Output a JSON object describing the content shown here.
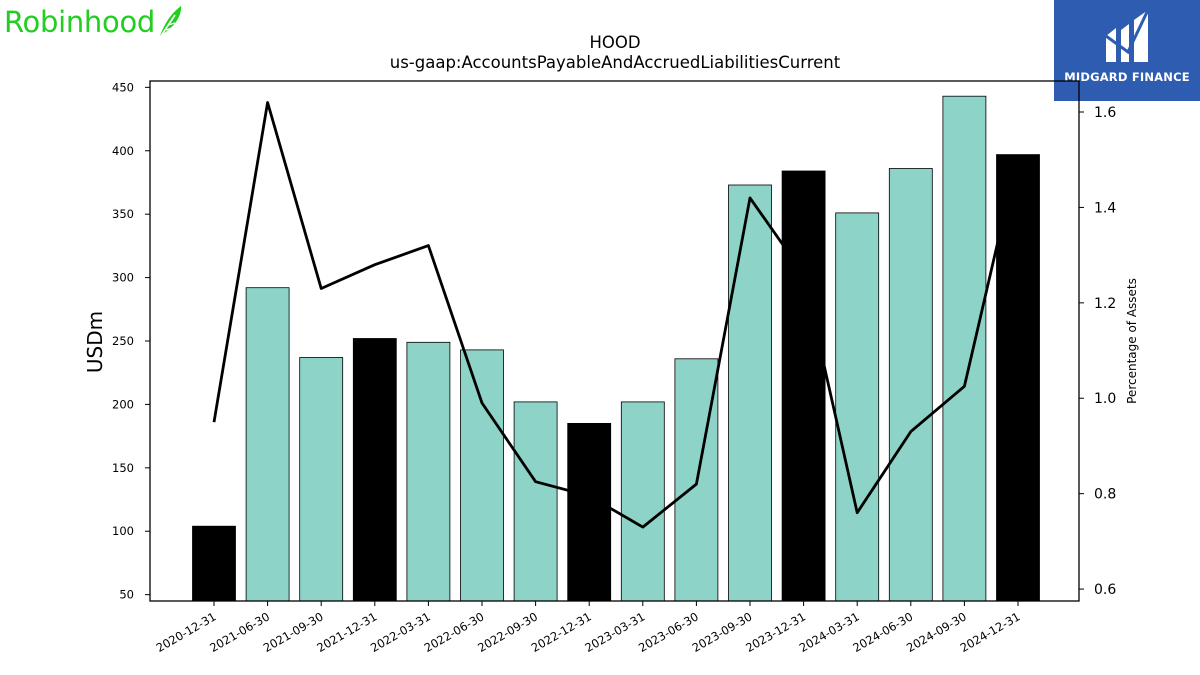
{
  "brand_left": {
    "text": "Robinhood",
    "icon": "feather-icon",
    "color": "#21ce21"
  },
  "brand_right": {
    "text": "MIDGARD FINANCE",
    "icon": "midgard-m-icon",
    "bg": "#2d5cb0"
  },
  "colors": {
    "bar_normal": "#8dd3c7",
    "bar_highlight": "#000000",
    "line": "#000000"
  },
  "chart_data": {
    "type": "bar",
    "title": "HOOD",
    "subtitle": "us-gaap:AccountsPayableAndAccruedLiabilitiesCurrent",
    "ylabel": "USDm",
    "y2label": "Percentage of Assets",
    "ylim": [
      45,
      455
    ],
    "y2lim": [
      0.575,
      1.665
    ],
    "yticks": [
      50,
      100,
      150,
      200,
      250,
      300,
      350,
      400,
      450
    ],
    "y2ticks": [
      0.6,
      0.8,
      1.0,
      1.2,
      1.4,
      1.6
    ],
    "categories": [
      "2020-12-31",
      "2021-06-30",
      "2021-09-30",
      "2021-12-31",
      "2022-03-31",
      "2022-06-30",
      "2022-09-30",
      "2022-12-31",
      "2023-03-31",
      "2023-06-30",
      "2023-09-30",
      "2023-12-31",
      "2024-03-31",
      "2024-06-30",
      "2024-09-30",
      "2024-12-31"
    ],
    "series": [
      {
        "kind": "bar",
        "values": [
          104,
          292,
          237,
          252,
          249,
          243,
          202,
          185,
          202,
          236,
          373,
          384,
          351,
          386,
          443,
          397
        ],
        "highlight": [
          true,
          false,
          false,
          true,
          false,
          false,
          false,
          true,
          false,
          false,
          false,
          true,
          false,
          false,
          false,
          true
        ]
      },
      {
        "kind": "line",
        "axis": "right",
        "values": [
          0.95,
          1.62,
          1.23,
          1.28,
          1.32,
          0.99,
          0.825,
          0.795,
          0.73,
          0.82,
          1.42,
          1.26,
          0.76,
          0.93,
          1.025,
          1.51
        ]
      }
    ],
    "grid": false,
    "legend": "none"
  }
}
